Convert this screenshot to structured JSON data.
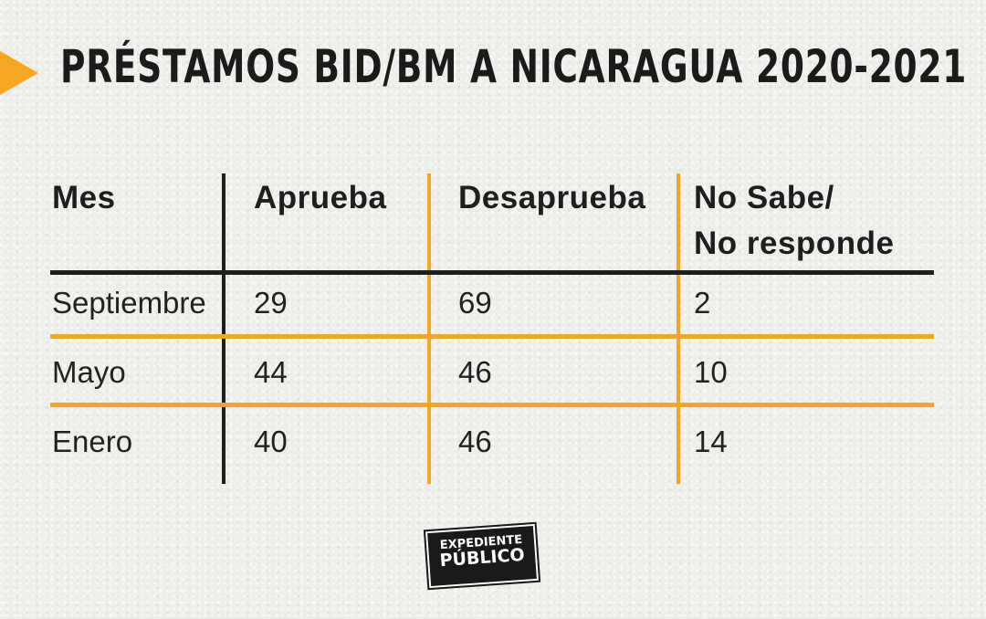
{
  "title": "PRÉSTAMOS BID/BM A NICARAGUA 2020-2021",
  "colors": {
    "accent": "#f5a623",
    "dark": "#1e1e1e",
    "background": "#ededea"
  },
  "chart_data": {
    "type": "table",
    "title": "PRÉSTAMOS BID/BM A NICARAGUA 2020-2021",
    "columns": [
      "Mes",
      "Aprueba",
      "Desaprueba",
      "No Sabe/ No responde"
    ],
    "header_lines": [
      [
        "Mes"
      ],
      [
        "Aprueba"
      ],
      [
        "Desaprueba"
      ],
      [
        "No Sabe/",
        "No responde"
      ]
    ],
    "rows": [
      [
        "Septiembre",
        "29",
        "69",
        "2"
      ],
      [
        "Mayo",
        "44",
        "46",
        "10"
      ],
      [
        "Enero",
        "40",
        "46",
        "14"
      ]
    ]
  },
  "logo": {
    "line1": "EXPEDIENTE",
    "line2": "PÚBLICO"
  }
}
